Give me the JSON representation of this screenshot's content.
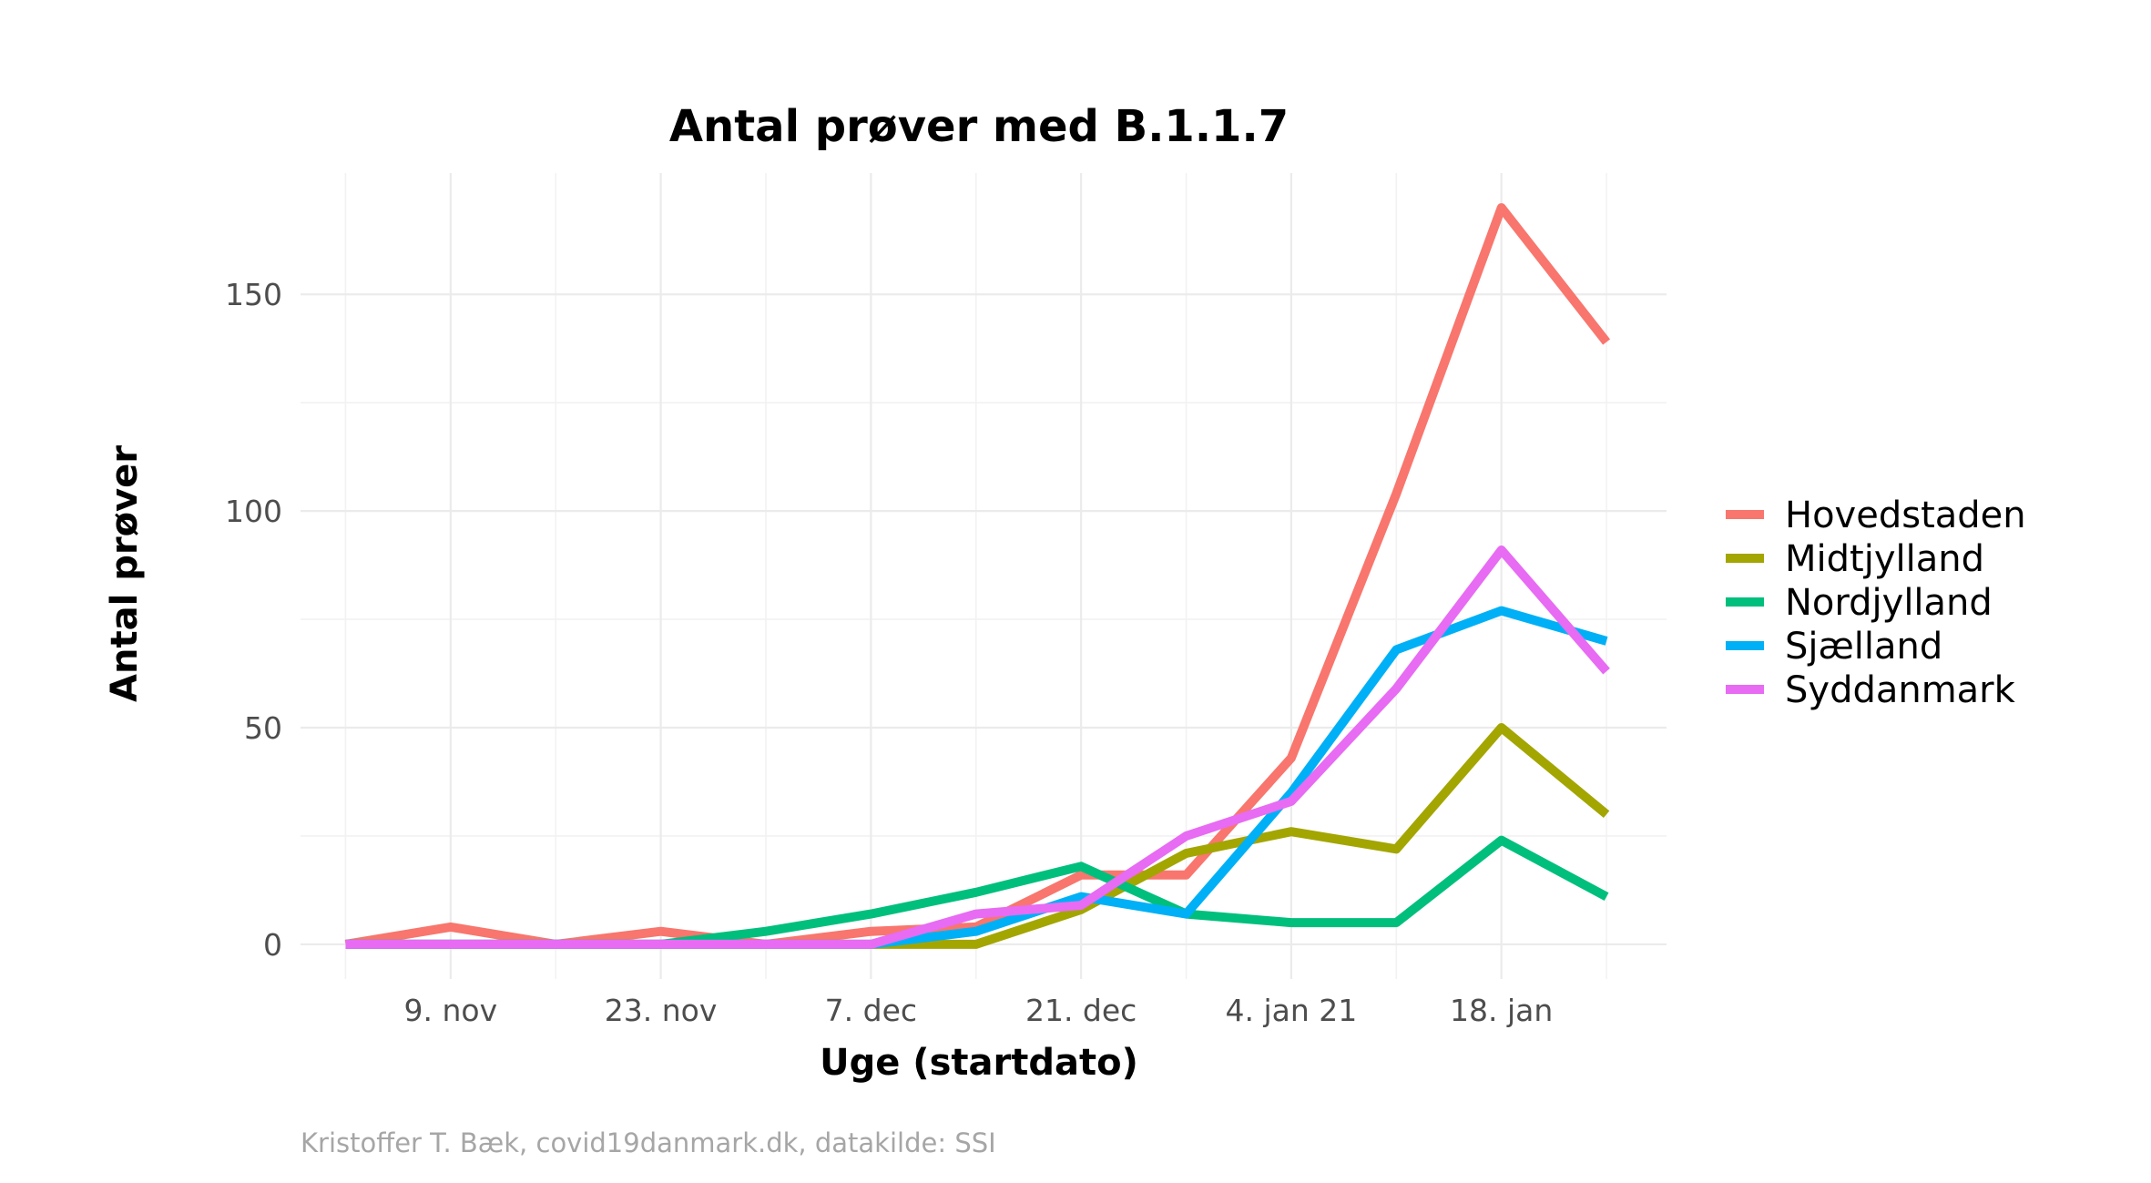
{
  "chart_data": {
    "type": "line",
    "title": "Antal prøver med B.1.1.7",
    "xlabel": "Uge (startdato)",
    "ylabel": "Antal prøver",
    "caption": "Kristoffer T. Bæk, covid19danmark.dk, datakilde: SSI",
    "x": [
      "2020-11-02",
      "2020-11-09",
      "2020-11-16",
      "2020-11-23",
      "2020-11-30",
      "2020-12-07",
      "2020-12-14",
      "2020-12-21",
      "2020-12-28",
      "2021-01-04",
      "2021-01-11",
      "2021-01-18",
      "2021-01-25"
    ],
    "x_ticks": [
      {
        "date": "2020-11-09",
        "label": "9. nov"
      },
      {
        "date": "2020-11-23",
        "label": "23. nov"
      },
      {
        "date": "2020-12-07",
        "label": "7. dec"
      },
      {
        "date": "2020-12-21",
        "label": "21. dec"
      },
      {
        "date": "2021-01-04",
        "label": "4. jan 21"
      },
      {
        "date": "2021-01-18",
        "label": "18. jan"
      }
    ],
    "y_ticks": [
      0,
      50,
      100,
      150
    ],
    "ylim": [
      -8,
      178
    ],
    "xlim": [
      "2020-10-30",
      "2021-01-29"
    ],
    "grid": true,
    "legend_position": "right",
    "series": [
      {
        "name": "Hovedstaden",
        "color": "#F8766D",
        "values": [
          0,
          4,
          0,
          3,
          0,
          3,
          4,
          16,
          16,
          43,
          104,
          170,
          139
        ]
      },
      {
        "name": "Midtjylland",
        "color": "#A3A500",
        "values": [
          0,
          0,
          0,
          0,
          0,
          0,
          0,
          8,
          21,
          26,
          22,
          50,
          30
        ]
      },
      {
        "name": "Nordjylland",
        "color": "#00BF7D",
        "values": [
          0,
          0,
          0,
          0,
          3,
          7,
          12,
          18,
          7,
          5,
          5,
          24,
          11
        ]
      },
      {
        "name": "Sjælland",
        "color": "#00B0F6",
        "values": [
          0,
          0,
          0,
          0,
          0,
          0,
          3,
          11,
          7,
          35,
          68,
          77,
          70
        ]
      },
      {
        "name": "Syddanmark",
        "color": "#E76BF3",
        "values": [
          0,
          0,
          0,
          0,
          0,
          0,
          7,
          9,
          25,
          33,
          59,
          91,
          63
        ]
      }
    ]
  }
}
